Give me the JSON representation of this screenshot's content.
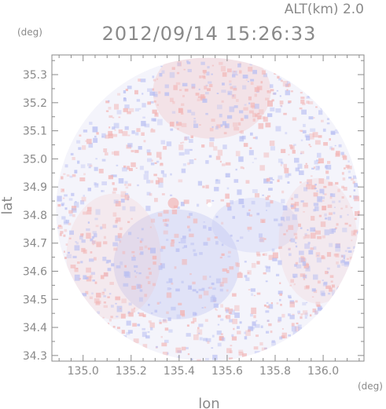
{
  "header": {
    "altitude_label": "ALT(km) 2.0",
    "timestamp": "2012/09/14 15:26:33"
  },
  "chart_data": {
    "type": "heatmap",
    "title": "2012/09/14 15:26:33",
    "xlabel": "lon",
    "ylabel": "lat",
    "x_unit": "(deg)",
    "y_unit": "(deg)",
    "xlim": [
      134.87,
      136.17
    ],
    "ylim": [
      34.28,
      35.37
    ],
    "x_ticks": [
      135.0,
      135.2,
      135.4,
      135.6,
      135.8,
      136.0
    ],
    "x_tick_labels": [
      "135.0",
      "135.2",
      "135.4",
      "135.6",
      "135.8",
      "136.0"
    ],
    "y_ticks": [
      34.3,
      34.4,
      34.5,
      34.6,
      34.7,
      34.8,
      34.9,
      35.0,
      35.1,
      35.2,
      35.3
    ],
    "y_tick_labels": [
      "34.3",
      "34.4",
      "34.5",
      "34.6",
      "34.7",
      "34.8",
      "34.9",
      "35.0",
      "35.1",
      "35.2",
      "35.3"
    ],
    "radar_center": [
      135.52,
      34.82
    ],
    "radar_radius_deg_lat": 0.54,
    "grid": false,
    "colors": {
      "positive": "#f2b5b5",
      "negative": "#b9bff2",
      "neutral": "#f4f4fb",
      "axis": "#8a8a8a"
    }
  }
}
